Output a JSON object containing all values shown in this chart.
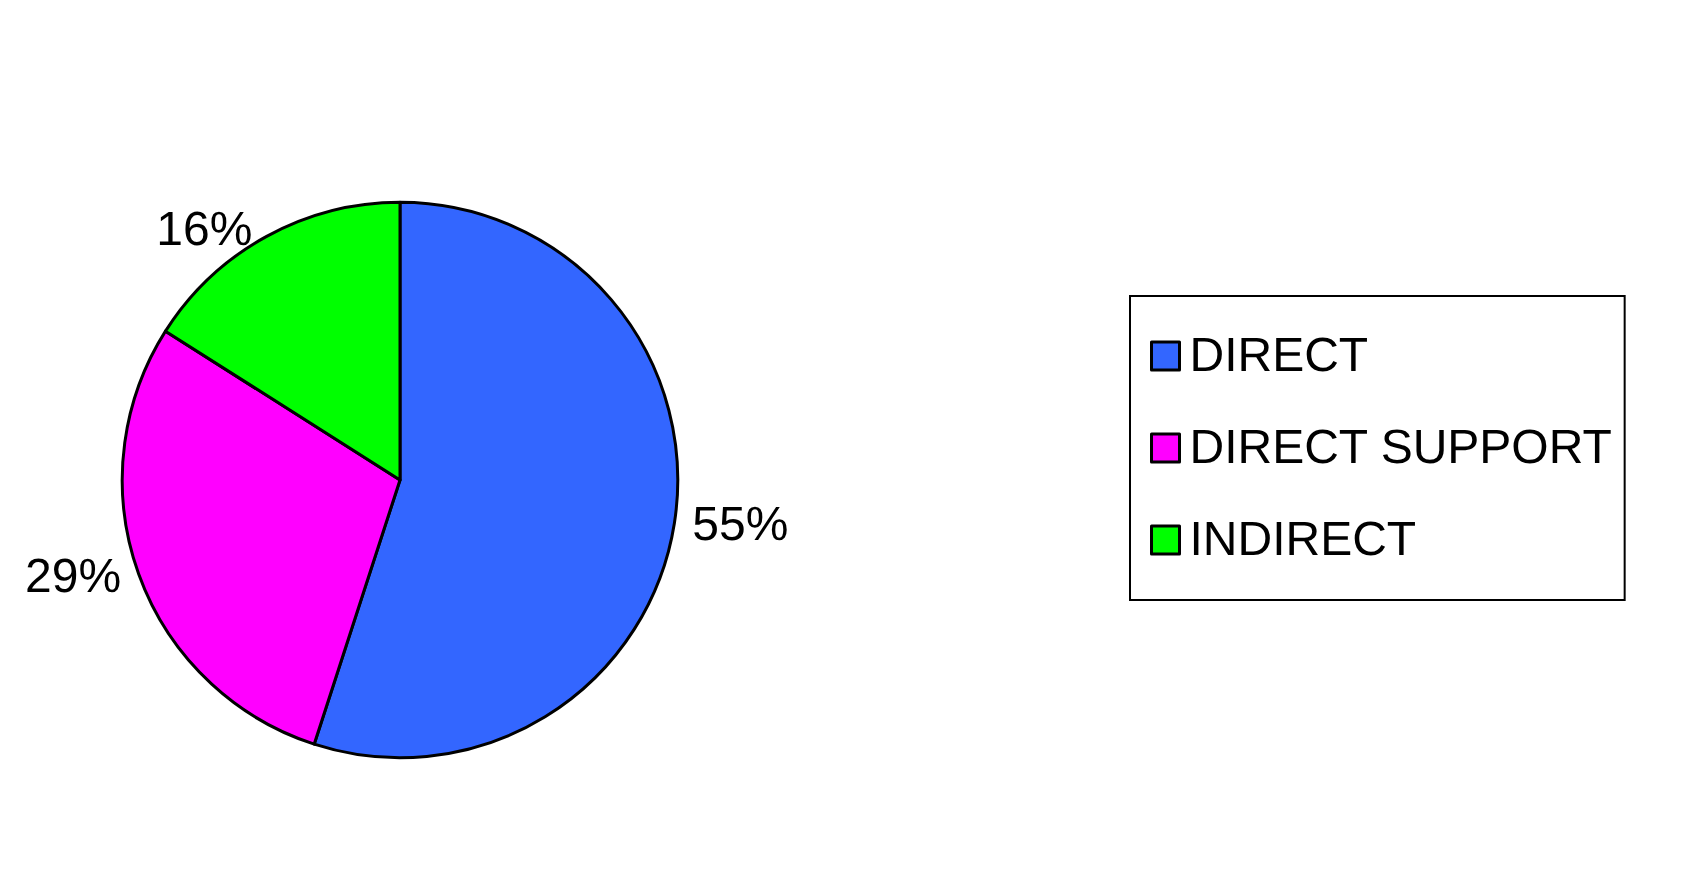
{
  "chart_data": {
    "type": "pie",
    "categories": [
      "DIRECT",
      "DIRECT SUPPORT",
      "INDIRECT"
    ],
    "values": [
      55,
      29,
      16
    ],
    "value_labels": [
      "55%",
      "29%",
      "16%"
    ],
    "colors": [
      "#3366ff",
      "#ff00ff",
      "#00ff00"
    ],
    "legend": "right"
  }
}
